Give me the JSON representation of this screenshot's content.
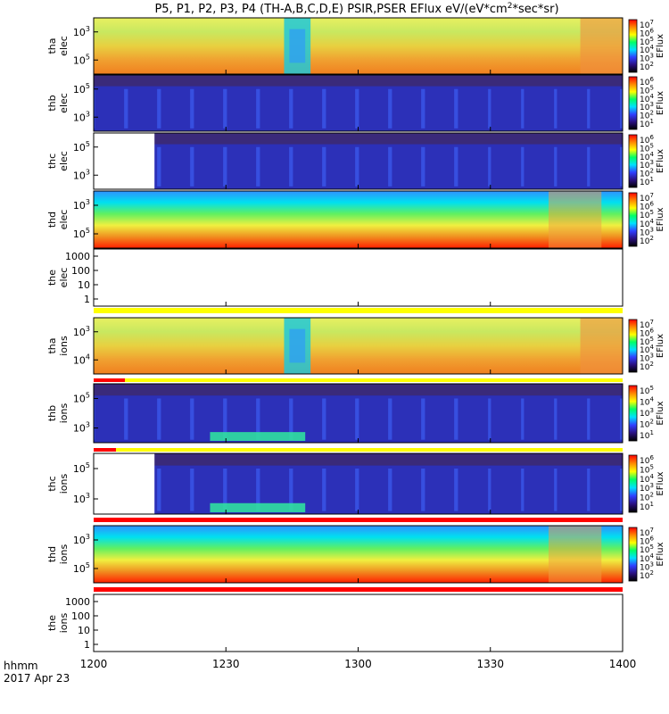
{
  "title": "P5, P1, P2, P3, P4 (TH-A,B,C,D,E) PSIR,PSER EFlux eV/(eV*cm",
  "title_sup": "2",
  "title_tail": "*sec*sr)",
  "colorbar_label": "EFlux",
  "time_label": "hhmm",
  "date_label": "2017 Apr 23",
  "chart_data": {
    "type": "heatmap",
    "x_ticks": [
      "1200",
      "1230",
      "1300",
      "1330",
      "1400"
    ],
    "x_range": [
      "12:00",
      "14:00"
    ],
    "panels": [
      {
        "id": "tha_elec",
        "ylabel": [
          "tha",
          "elec"
        ],
        "y_ticks": [
          "10^3",
          "10^5"
        ],
        "cb_ticks": [
          "10^7",
          "10^6",
          "10^5",
          "10^4",
          "10^3",
          "10^2"
        ],
        "palette": "warm",
        "data_gap": null,
        "color": "#f2d84a"
      },
      {
        "id": "thb_elec",
        "ylabel": [
          "thb",
          "elec"
        ],
        "y_ticks": [
          "10^5",
          "10^3"
        ],
        "cb_ticks": [
          "10^6",
          "10^5",
          "10^4",
          "10^3",
          "10^2",
          "10^1"
        ],
        "palette": "noise",
        "data_gap": null,
        "color": "#3a3cc8"
      },
      {
        "id": "thc_elec",
        "ylabel": [
          "thc",
          "elec"
        ],
        "y_ticks": [
          "10^5",
          "10^3"
        ],
        "cb_ticks": [
          "10^6",
          "10^5",
          "10^4",
          "10^3",
          "10^2",
          "10^1"
        ],
        "palette": "noise",
        "data_gap": "12:00-12:14",
        "color": "#3a3cc8"
      },
      {
        "id": "thd_elec",
        "ylabel": [
          "thd",
          "elec"
        ],
        "y_ticks": [
          "10^3",
          "10^5"
        ],
        "cb_ticks": [
          "10^7",
          "10^6",
          "10^5",
          "10^4",
          "10^3",
          "10^2"
        ],
        "palette": "bands",
        "data_gap": null,
        "color": "#e8d020"
      },
      {
        "id": "the_elec",
        "ylabel": [
          "the",
          "elec"
        ],
        "y_ticks": [
          "1000",
          "100",
          "10",
          "1"
        ],
        "cb_ticks": [],
        "palette": "empty",
        "data_gap": "no data",
        "color": "#ffffff"
      },
      {
        "id": "tha_ions",
        "ylabel": [
          "tha",
          "ions"
        ],
        "y_ticks": [
          "10^3",
          "10^4"
        ],
        "cb_ticks": [
          "10^7",
          "10^6",
          "10^5",
          "10^4",
          "10^3",
          "10^2"
        ],
        "palette": "warm",
        "data_gap": null,
        "color": "#c8e050"
      },
      {
        "id": "thb_ions",
        "ylabel": [
          "thb",
          "ions"
        ],
        "y_ticks": [
          "10^5",
          "10^3"
        ],
        "cb_ticks": [
          "10^5",
          "10^4",
          "10^3",
          "10^2",
          "10^1"
        ],
        "palette": "noise",
        "data_gap": null,
        "color": "#3a3cc8"
      },
      {
        "id": "thc_ions",
        "ylabel": [
          "thc",
          "ions"
        ],
        "y_ticks": [
          "10^5",
          "10^3"
        ],
        "cb_ticks": [
          "10^6",
          "10^5",
          "10^4",
          "10^3",
          "10^2",
          "10^1"
        ],
        "palette": "noise",
        "data_gap": "12:00-12:14",
        "color": "#3a3cc8"
      },
      {
        "id": "thd_ions",
        "ylabel": [
          "thd",
          "ions"
        ],
        "y_ticks": [
          "10^3",
          "10^5"
        ],
        "cb_ticks": [
          "10^7",
          "10^6",
          "10^5",
          "10^4",
          "10^3",
          "10^2"
        ],
        "palette": "bands",
        "data_gap": null,
        "color": "#e8d020"
      },
      {
        "id": "the_ions",
        "ylabel": [
          "the",
          "ions"
        ],
        "y_ticks": [
          "1000",
          "100",
          "10",
          "1"
        ],
        "cb_ticks": [],
        "palette": "empty",
        "data_gap": "no data",
        "color": "#ffffff"
      }
    ]
  }
}
